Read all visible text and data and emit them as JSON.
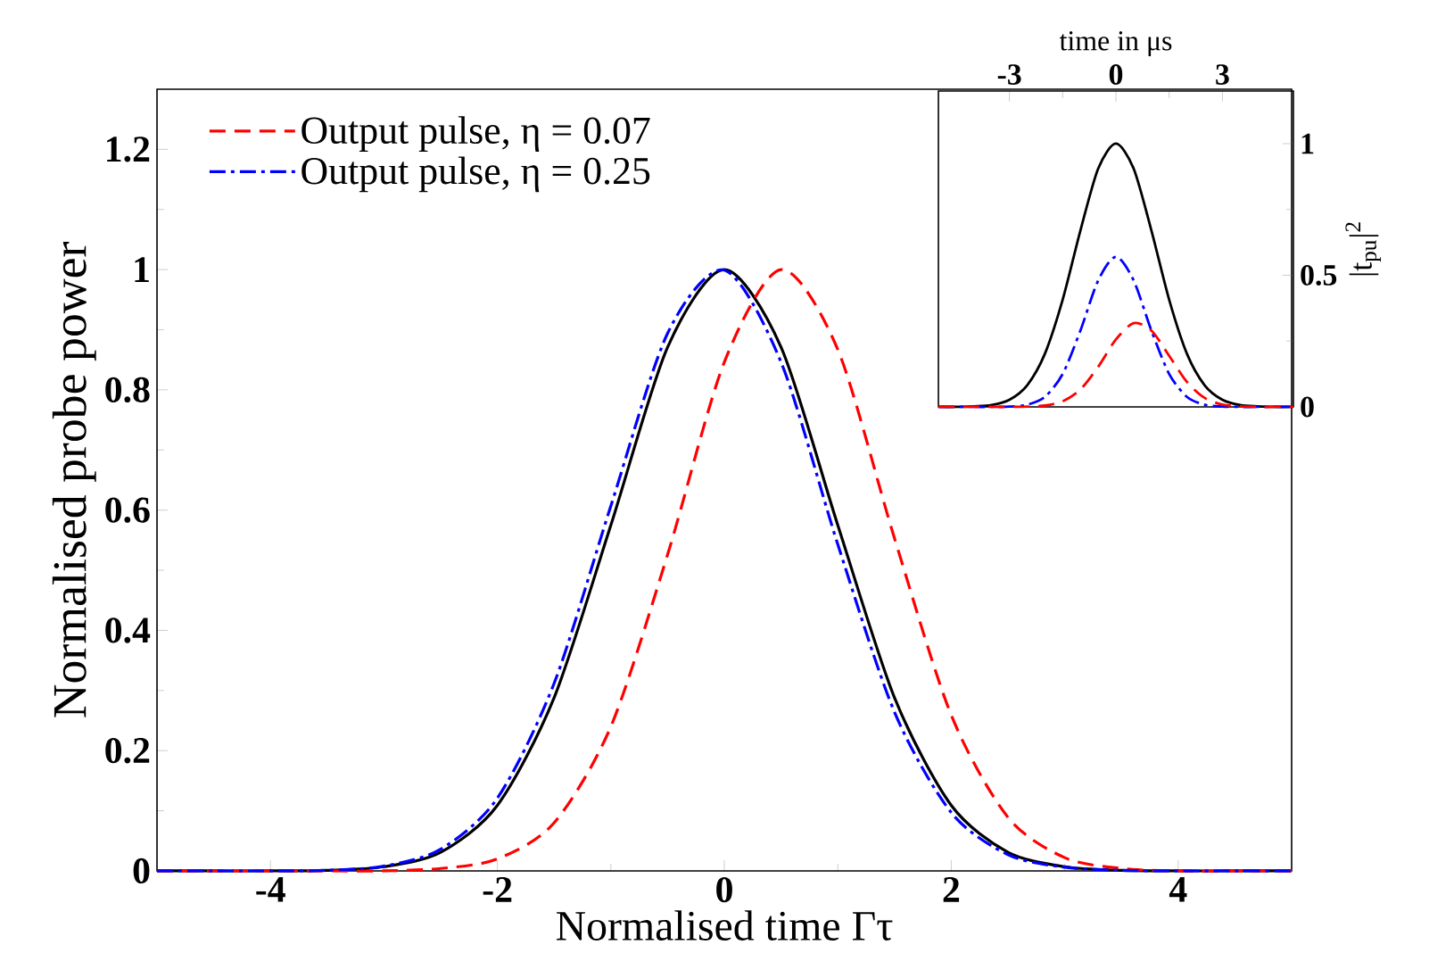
{
  "chart_data": [
    {
      "type": "line",
      "xlabel": "Normalised time Γτ",
      "ylabel": "Normalised probe power",
      "xlim": [
        -5,
        5
      ],
      "ylim": [
        0,
        1.3
      ],
      "xticks": [
        -4,
        -2,
        0,
        2,
        4
      ],
      "yticks": [
        0,
        0.2,
        0.4,
        0.6,
        0.8,
        1,
        1.2
      ],
      "legend": "top left",
      "x": [
        -5,
        -4.5,
        -4,
        -3.5,
        -3,
        -2.5,
        -2,
        -1.5,
        -1,
        -0.5,
        0,
        0.5,
        1,
        1.5,
        2,
        2.5,
        3,
        3.5,
        4,
        4.5,
        5
      ],
      "series": [
        {
          "name": "Output pulse, η = 0.07",
          "color": "#ff0000",
          "line_style": "dashed",
          "values": [
            0,
            0,
            0,
            0,
            0,
            0.004,
            0.02,
            0.08,
            0.24,
            0.526,
            0.846,
            1.0,
            0.867,
            0.553,
            0.259,
            0.089,
            0.022,
            0.004,
            0,
            0,
            0
          ]
        },
        {
          "name": "Output pulse, η = 0.25",
          "color": "#0000ff",
          "line_style": "dashdot",
          "values": [
            0,
            0,
            0,
            0.001,
            0.008,
            0.036,
            0.121,
            0.312,
            0.607,
            0.894,
            0.999,
            0.846,
            0.543,
            0.264,
            0.097,
            0.027,
            0.006,
            0.001,
            0,
            0,
            0
          ]
        },
        {
          "color": "#000000",
          "line_style": "solid",
          "values": [
            0,
            0,
            0,
            0.001,
            0.007,
            0.031,
            0.109,
            0.288,
            0.575,
            0.871,
            1,
            0.871,
            0.575,
            0.288,
            0.109,
            0.031,
            0.007,
            0.001,
            0,
            0,
            0
          ]
        }
      ]
    },
    {
      "type": "line",
      "xlabel": "time in μs",
      "ylabel": "|t$_{pu}$|$^{2}$",
      "xlim": [
        -5,
        5
      ],
      "ylim": [
        0,
        1.2
      ],
      "xticks": [
        -3,
        0,
        3
      ],
      "yticks": [
        0,
        0.5,
        1
      ],
      "x": [
        -5,
        -4.5,
        -4,
        -3.5,
        -3,
        -2.5,
        -2,
        -1.5,
        -1,
        -0.5,
        0,
        0.5,
        1,
        1.5,
        2,
        2.5,
        3,
        3.5,
        4,
        4.5,
        5
      ],
      "series": [
        {
          "color": "#ff0000",
          "line_style": "dashed",
          "values": [
            0,
            0,
            0,
            0,
            0,
            0.001,
            0.005,
            0.021,
            0.066,
            0.152,
            0.256,
            0.318,
            0.29,
            0.194,
            0.095,
            0.034,
            0.009,
            0.002,
            0,
            0,
            0
          ]
        },
        {
          "color": "#0000ff",
          "line_style": "dashdot",
          "values": [
            0,
            0,
            0,
            0,
            0.001,
            0.008,
            0.038,
            0.125,
            0.29,
            0.48,
            0.57,
            0.48,
            0.29,
            0.125,
            0.038,
            0.008,
            0.001,
            0,
            0,
            0,
            0
          ]
        },
        {
          "color": "#000000",
          "line_style": "solid",
          "values": [
            0,
            0,
            0.002,
            0.007,
            0.027,
            0.082,
            0.202,
            0.407,
            0.67,
            0.905,
            1,
            0.905,
            0.67,
            0.407,
            0.202,
            0.082,
            0.027,
            0.007,
            0.002,
            0,
            0
          ]
        }
      ]
    }
  ]
}
